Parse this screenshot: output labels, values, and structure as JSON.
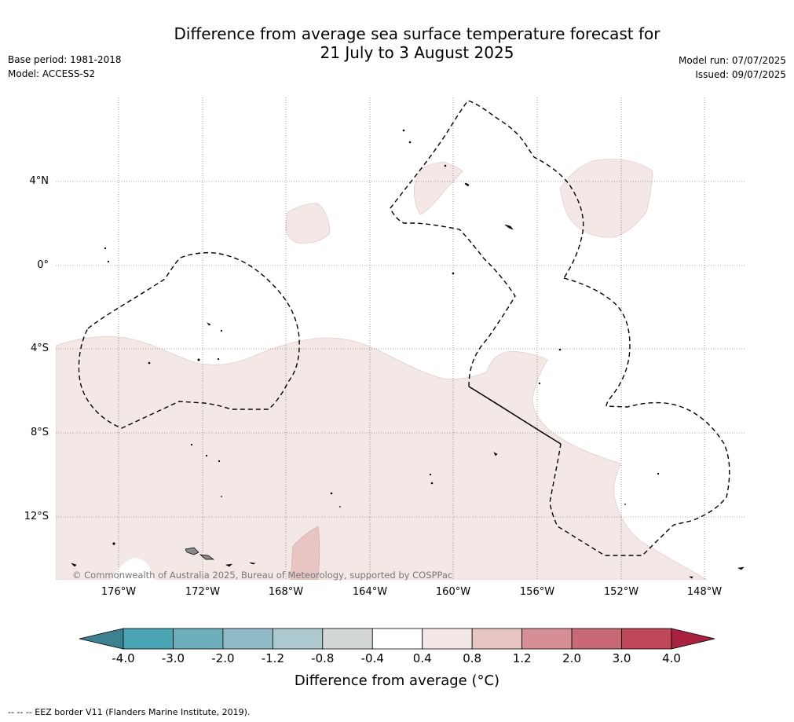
{
  "header": {
    "title_line1": "Difference from average sea surface temperature forecast for",
    "title_line2": "21 July to 3 August 2025",
    "base_period": "Base period: 1981-2018",
    "model": "Model: ACCESS-S2",
    "model_run": "Model run: 07/07/2025",
    "issued": "Issued: 09/07/2025"
  },
  "map": {
    "lat_labels": [
      "4°N",
      "0°",
      "4°S",
      "8°S",
      "12°S"
    ],
    "lon_labels": [
      "176°W",
      "172°W",
      "168°W",
      "164°W",
      "160°W",
      "156°W",
      "152°W",
      "148°W"
    ],
    "copyright": "© Commonwealth of Australia 2025, Bureau of Meteorology, supported by COSPPac",
    "colors": {
      "light_anomaly": "#f4e8e7",
      "mid_anomaly": "#e6c5c2",
      "eez_line": "#000000"
    }
  },
  "colorbar": {
    "label": "Difference from average (°C)",
    "ticks": [
      "-4.0",
      "-3.0",
      "-2.0",
      "-1.2",
      "-0.8",
      "-0.4",
      "0.4",
      "0.8",
      "1.2",
      "2.0",
      "3.0",
      "4.0"
    ],
    "colors": [
      "#3d8190",
      "#4ba4b4",
      "#6daebd",
      "#8fbac6",
      "#acc9cf",
      "#d3d8d7",
      "#ffffff",
      "#f4e8e7",
      "#e6c5c2",
      "#d68f97",
      "#c86a76",
      "#bf4858",
      "#a8213f"
    ]
  },
  "footer": {
    "eez_note": "--  --  -- EEZ border V11 (Flanders Marine Institute, 2019)."
  }
}
